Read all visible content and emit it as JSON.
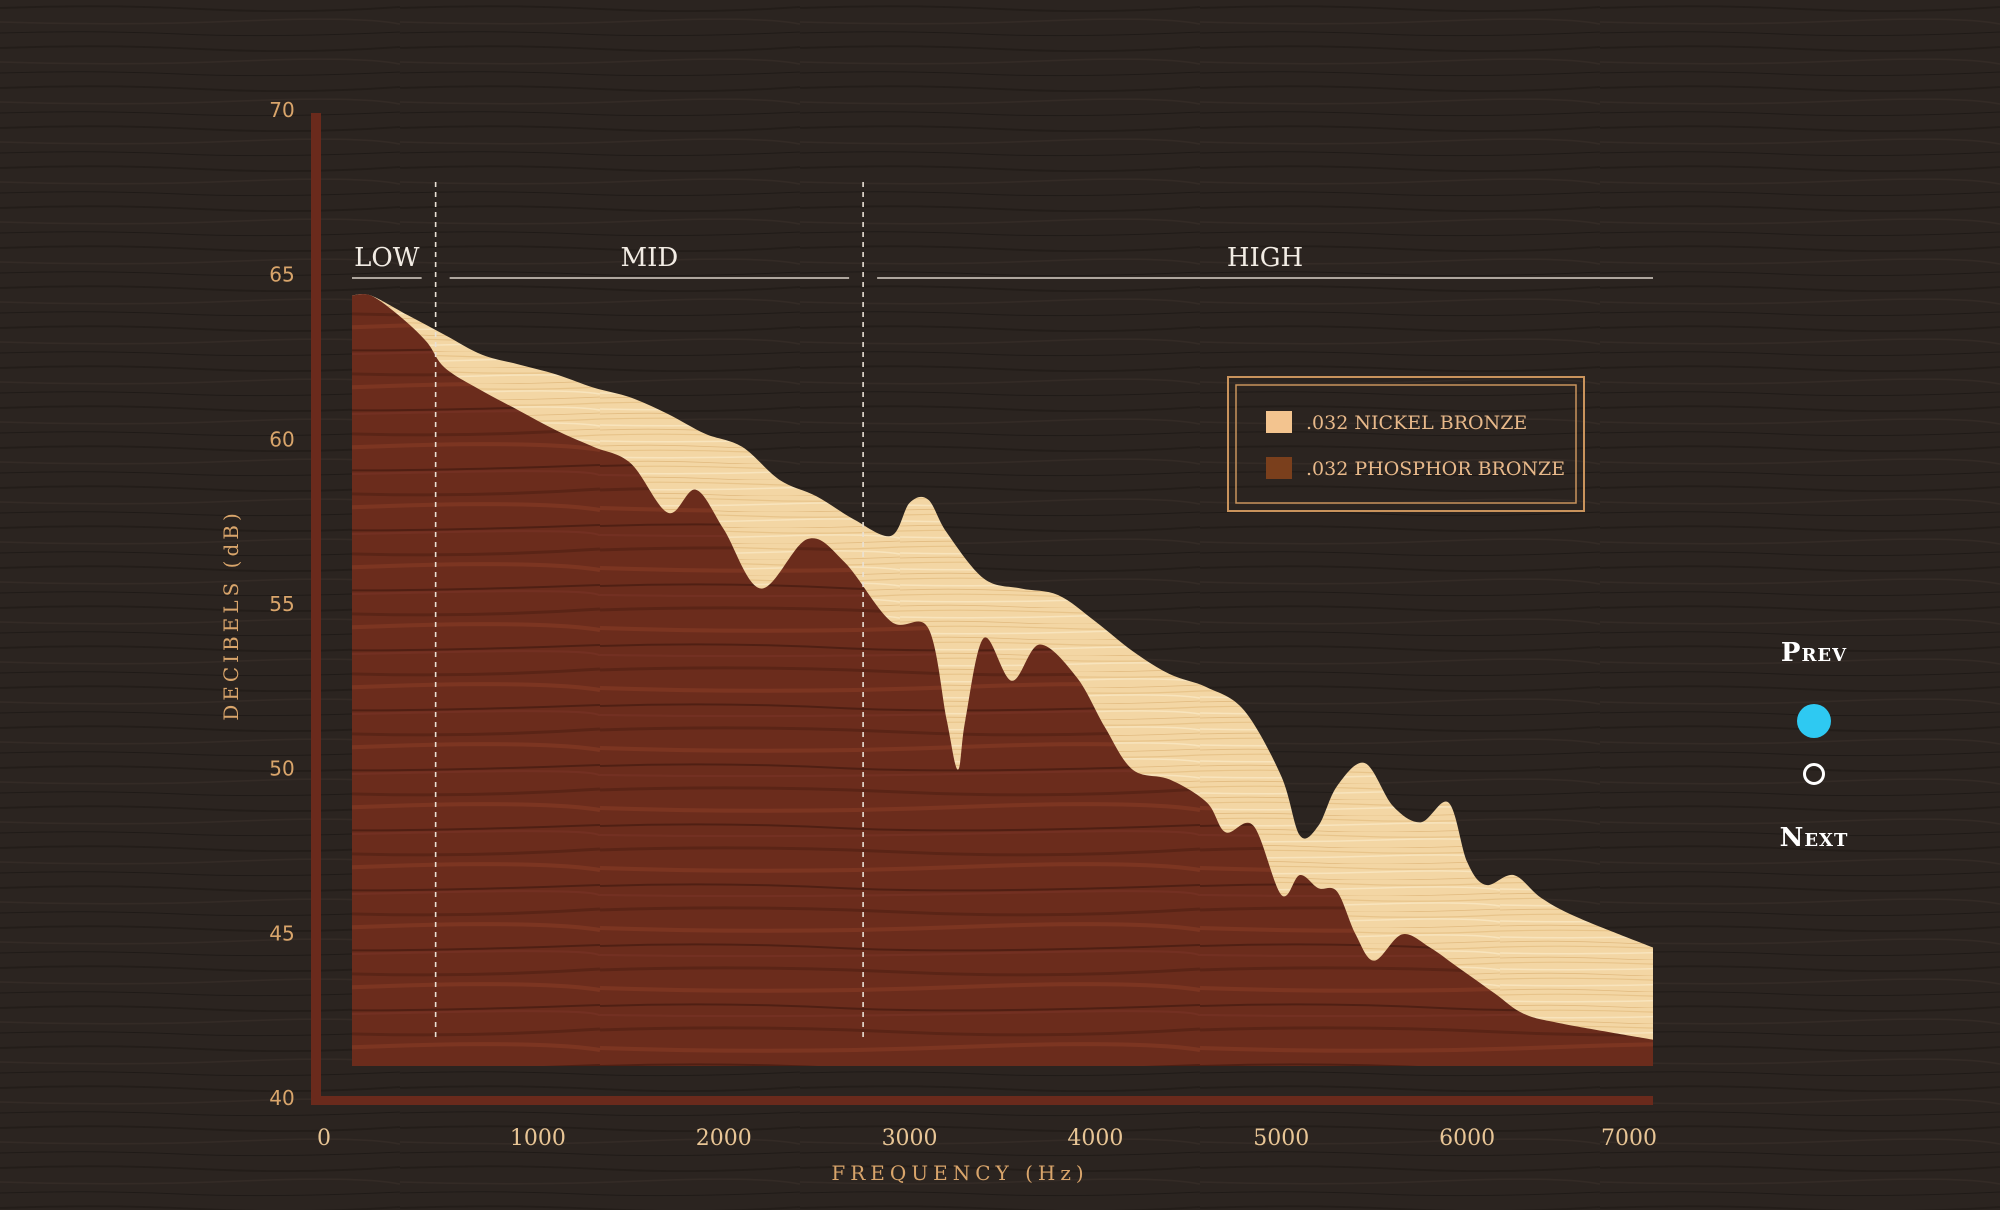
{
  "chart_data": {
    "type": "area",
    "xlabel": "FREQUENCY (Hz)",
    "ylabel": "DECIBELS (dB)",
    "xlim": [
      0,
      7000
    ],
    "ylim": [
      40,
      70
    ],
    "x_ticks": [
      "0",
      "1000",
      "2000",
      "3000",
      "4000",
      "5000",
      "6000",
      "7000"
    ],
    "y_ticks": [
      "40",
      "45",
      "50",
      "55",
      "60",
      "65",
      "70"
    ],
    "ranges": [
      {
        "label": "LOW",
        "x_start": 0,
        "x_end": 450
      },
      {
        "label": "MID",
        "x_start": 450,
        "x_end": 2750
      },
      {
        "label": "HIGH",
        "x_start": 2750,
        "x_end": 7000
      }
    ],
    "dividers": [
      450,
      2750
    ],
    "legend_position": "top-right",
    "series": [
      {
        "name": ".032 NICKEL BRONZE",
        "color": "#f3c48f",
        "points": [
          [
            0,
            64.4
          ],
          [
            100,
            64.4
          ],
          [
            300,
            63.8
          ],
          [
            500,
            63.2
          ],
          [
            700,
            62.6
          ],
          [
            900,
            62.3
          ],
          [
            1100,
            62.0
          ],
          [
            1300,
            61.6
          ],
          [
            1500,
            61.3
          ],
          [
            1700,
            60.8
          ],
          [
            1900,
            60.2
          ],
          [
            2100,
            59.8
          ],
          [
            2300,
            58.8
          ],
          [
            2500,
            58.3
          ],
          [
            2700,
            57.6
          ],
          [
            2900,
            57.1
          ],
          [
            3000,
            58.1
          ],
          [
            3100,
            58.2
          ],
          [
            3200,
            57.2
          ],
          [
            3400,
            55.8
          ],
          [
            3600,
            55.5
          ],
          [
            3800,
            55.3
          ],
          [
            4000,
            54.5
          ],
          [
            4200,
            53.6
          ],
          [
            4400,
            52.9
          ],
          [
            4600,
            52.5
          ],
          [
            4800,
            51.8
          ],
          [
            5000,
            49.8
          ],
          [
            5100,
            48.0
          ],
          [
            5200,
            48.3
          ],
          [
            5300,
            49.5
          ],
          [
            5450,
            50.2
          ],
          [
            5600,
            48.9
          ],
          [
            5750,
            48.4
          ],
          [
            5900,
            49.0
          ],
          [
            6000,
            47.2
          ],
          [
            6100,
            46.5
          ],
          [
            6250,
            46.8
          ],
          [
            6400,
            46.1
          ],
          [
            6600,
            45.5
          ],
          [
            7000,
            44.6
          ]
        ]
      },
      {
        "name": ".032 PHOSPHOR BRONZE",
        "color": "#7a3f1c",
        "points": [
          [
            0,
            64.4
          ],
          [
            100,
            64.4
          ],
          [
            250,
            63.8
          ],
          [
            400,
            63.0
          ],
          [
            500,
            62.2
          ],
          [
            700,
            61.5
          ],
          [
            900,
            60.9
          ],
          [
            1100,
            60.3
          ],
          [
            1300,
            59.8
          ],
          [
            1500,
            59.3
          ],
          [
            1700,
            57.8
          ],
          [
            1850,
            58.5
          ],
          [
            2000,
            57.3
          ],
          [
            2200,
            55.5
          ],
          [
            2450,
            57.0
          ],
          [
            2650,
            56.3
          ],
          [
            2900,
            54.5
          ],
          [
            3100,
            54.3
          ],
          [
            3200,
            51.5
          ],
          [
            3260,
            50.0
          ],
          [
            3300,
            51.5
          ],
          [
            3400,
            54.0
          ],
          [
            3550,
            52.7
          ],
          [
            3700,
            53.8
          ],
          [
            3900,
            52.8
          ],
          [
            4050,
            51.3
          ],
          [
            4200,
            50.0
          ],
          [
            4400,
            49.7
          ],
          [
            4600,
            49.0
          ],
          [
            4700,
            48.1
          ],
          [
            4850,
            48.3
          ],
          [
            5000,
            46.2
          ],
          [
            5100,
            46.8
          ],
          [
            5200,
            46.4
          ],
          [
            5300,
            46.3
          ],
          [
            5400,
            45.0
          ],
          [
            5500,
            44.2
          ],
          [
            5650,
            45.0
          ],
          [
            5800,
            44.6
          ],
          [
            5950,
            44.0
          ],
          [
            6150,
            43.2
          ],
          [
            6300,
            42.6
          ],
          [
            6500,
            42.3
          ],
          [
            7000,
            41.8
          ]
        ]
      }
    ]
  },
  "nav": {
    "prev_label": "Prev",
    "next_label": "Next",
    "active_color": "#2ec9f2",
    "active_index": 0,
    "pages": 2
  }
}
